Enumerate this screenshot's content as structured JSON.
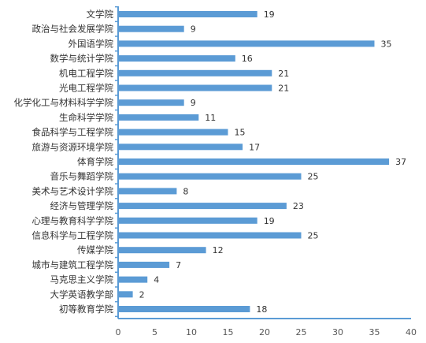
{
  "chart_data": {
    "type": "bar",
    "orientation": "horizontal",
    "categories": [
      "文学院",
      "政治与社会发展学院",
      "外国语学院",
      "数学与统计学院",
      "机电工程学院",
      "光电工程学院",
      "化学化工与材料科学学院",
      "生命科学学院",
      "食品科学与工程学院",
      "旅游与资源环境学院",
      "体育学院",
      "音乐与舞蹈学院",
      "美术与艺术设计学院",
      "经济与管理学院",
      "心理与教育科学学院",
      "信息科学与工程学院",
      "传媒学院",
      "城市与建筑工程学院",
      "马克思主义学院",
      "大学英语教学部",
      "初等教育学院"
    ],
    "values": [
      19,
      9,
      35,
      16,
      21,
      21,
      9,
      11,
      15,
      17,
      37,
      25,
      8,
      23,
      19,
      25,
      12,
      7,
      4,
      2,
      18
    ],
    "xlim": [
      0,
      40
    ],
    "xticks": [
      0,
      5,
      10,
      15,
      20,
      25,
      30,
      35,
      40
    ],
    "grid": false,
    "legend": "none",
    "bar_color": "#5b9bd5",
    "data_labels": true
  }
}
